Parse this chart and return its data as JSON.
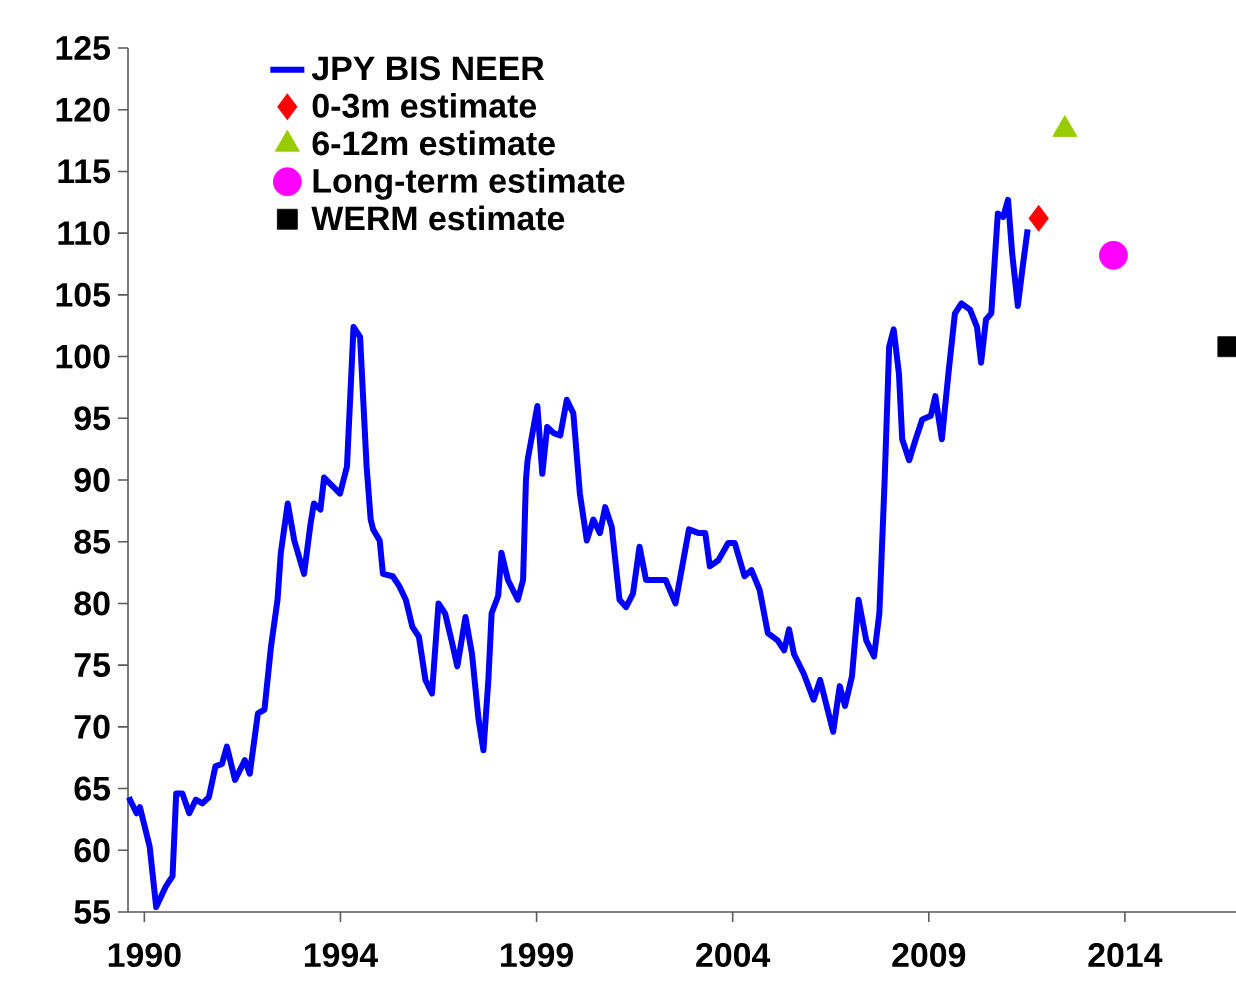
{
  "chart_data": {
    "type": "line",
    "xlim": [
      1989.2,
      2016.32
    ],
    "ylim": [
      55,
      125
    ],
    "xticks": [
      {
        "value": 1989.6,
        "label": "1990"
      },
      {
        "value": 1994.4,
        "label": "1994"
      },
      {
        "value": 1999.2,
        "label": "1999"
      },
      {
        "value": 2004.0,
        "label": "2004"
      },
      {
        "value": 2008.8,
        "label": "2009"
      },
      {
        "value": 2013.6,
        "label": "2014"
      }
    ],
    "yticks": [
      55,
      60,
      65,
      70,
      75,
      80,
      85,
      90,
      95,
      100,
      105,
      110,
      115,
      120,
      125
    ],
    "grid": false,
    "legend": "top left",
    "series": [
      {
        "name": "JPY BIS NEER",
        "color": "#0000ff",
        "marker": "none",
        "x": [
          1989.22,
          1989.41,
          1989.49,
          1989.73,
          1989.89,
          1990.13,
          1990.29,
          1990.38,
          1990.53,
          1990.7,
          1990.86,
          1991.02,
          1991.18,
          1991.34,
          1991.5,
          1991.62,
          1991.82,
          1992.06,
          1992.18,
          1992.38,
          1992.54,
          1992.7,
          1992.86,
          1992.94,
          1993.11,
          1993.27,
          1993.51,
          1993.67,
          1993.75,
          1993.91,
          1994.0,
          1994.39,
          1994.56,
          1994.72,
          1994.88,
          1995.04,
          1995.14,
          1995.2,
          1995.36,
          1995.44,
          1995.68,
          1995.84,
          1996.0,
          1996.16,
          1996.32,
          1996.48,
          1996.64,
          1996.8,
          1996.96,
          1997.12,
          1997.26,
          1997.46,
          1997.62,
          1997.78,
          1997.9,
          1998.02,
          1998.1,
          1998.26,
          1998.34,
          1998.5,
          1998.74,
          1998.87,
          1998.94,
          1998.98,
          1999.22,
          1999.34,
          1999.46,
          1999.62,
          1999.78,
          1999.94,
          2000.1,
          2000.26,
          2000.43,
          2000.59,
          2000.75,
          2000.88,
          2001.04,
          2001.23,
          2001.39,
          2001.56,
          2001.72,
          2001.88,
          2002.36,
          2002.6,
          2002.93,
          2003.17,
          2003.33,
          2003.44,
          2003.65,
          2003.89,
          2004.05,
          2004.29,
          2004.46,
          2004.66,
          2004.86,
          2005.1,
          2005.26,
          2005.38,
          2005.5,
          2005.74,
          2005.98,
          2006.14,
          2006.46,
          2006.62,
          2006.75,
          2006.92,
          2007.08,
          2007.27,
          2007.46,
          2007.59,
          2007.72,
          2007.83,
          2007.94,
          2008.07,
          2008.15,
          2008.32,
          2008.48,
          2008.64,
          2008.85,
          2008.96,
          2009.12,
          2009.28,
          2009.44,
          2009.6,
          2009.81,
          2009.98,
          2010.08,
          2010.2,
          2010.33,
          2010.49,
          2010.62,
          2010.74,
          2010.84,
          2010.98,
          2011.1,
          2011.22
        ],
        "values": [
          64.3,
          63.0,
          63.5,
          60.3,
          55.4,
          57.1,
          57.9,
          64.6,
          64.6,
          63.0,
          64.1,
          63.8,
          64.3,
          66.8,
          67.0,
          68.4,
          65.7,
          67.3,
          66.2,
          71.1,
          71.4,
          76.5,
          80.3,
          84.1,
          88.1,
          85.1,
          82.4,
          86.5,
          88.1,
          87.6,
          90.2,
          88.9,
          91.1,
          102.4,
          101.6,
          91.1,
          86.8,
          86.0,
          85.1,
          82.4,
          82.2,
          81.4,
          80.3,
          78.1,
          77.3,
          73.8,
          72.7,
          80.0,
          79.2,
          77.0,
          74.9,
          78.9,
          75.9,
          70.6,
          68.1,
          73.8,
          79.2,
          80.6,
          84.1,
          81.9,
          80.3,
          81.9,
          90.0,
          91.6,
          96.0,
          90.5,
          94.3,
          93.8,
          93.6,
          96.5,
          95.4,
          88.9,
          85.1,
          86.8,
          85.7,
          87.8,
          86.2,
          80.3,
          79.7,
          80.8,
          84.6,
          81.9,
          81.9,
          80.0,
          86.0,
          85.7,
          85.7,
          83.0,
          83.5,
          84.9,
          84.9,
          82.2,
          82.7,
          81.1,
          77.6,
          77.0,
          76.2,
          77.9,
          75.9,
          74.3,
          72.2,
          73.8,
          69.6,
          73.3,
          71.7,
          74.1,
          80.3,
          77.0,
          75.7,
          79.2,
          90.0,
          100.8,
          102.2,
          98.6,
          93.3,
          91.6,
          93.3,
          94.9,
          95.2,
          96.8,
          93.3,
          98.6,
          103.5,
          104.3,
          103.8,
          102.4,
          99.5,
          103.0,
          103.5,
          111.6,
          111.3,
          112.7,
          108.4,
          104.1,
          107.3,
          110.3
        ]
      },
      {
        "name": "0-3m estimate",
        "type": "scatter",
        "color": "#ff0000",
        "marker": "diamond",
        "x": [
          2011.49
        ],
        "values": [
          111.2
        ]
      },
      {
        "name": "6-12m estimate",
        "type": "scatter",
        "color": "#99cc00",
        "marker": "triangle",
        "x": [
          2012.13
        ],
        "values": [
          118.4
        ]
      },
      {
        "name": "Long-term estimate",
        "type": "scatter",
        "color": "#ff00ff",
        "marker": "circle",
        "x": [
          2013.32
        ],
        "values": [
          108.2
        ]
      },
      {
        "name": "WERM estimate",
        "type": "scatter",
        "color": "#000000",
        "marker": "square",
        "x": [
          2016.12
        ],
        "values": [
          100.8
        ]
      }
    ]
  }
}
